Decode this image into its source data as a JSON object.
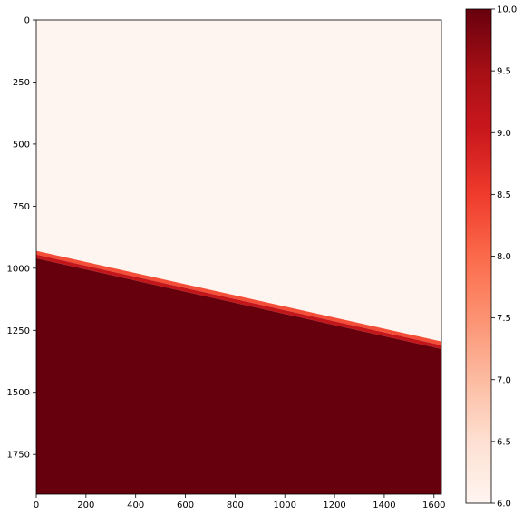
{
  "chart_data": {
    "type": "heatmap",
    "title": "",
    "xlabel": "",
    "ylabel": "",
    "xlim": [
      0,
      1630
    ],
    "ylim": [
      1910,
      0
    ],
    "x_ticks": [
      0,
      200,
      400,
      600,
      800,
      1000,
      1200,
      1400,
      1600
    ],
    "y_ticks": [
      0,
      250,
      500,
      750,
      1000,
      1250,
      1500,
      1750
    ],
    "colormap": "Reds",
    "vmin": 6.0,
    "vmax": 10.0,
    "colorbar_ticks": [
      "6.0",
      "6.5",
      "7.0",
      "7.5",
      "8.0",
      "8.5",
      "9.0",
      "9.5",
      "10.0"
    ],
    "regions": [
      {
        "name": "upper",
        "value": 6.0
      },
      {
        "name": "lower",
        "value": 10.0
      }
    ],
    "interface": {
      "x_start": 0,
      "y_start": 930,
      "x_end": 1630,
      "y_end": 1295
    },
    "transition_bands": [
      {
        "value": 8.3,
        "thickness": 15
      },
      {
        "value": 9.1,
        "thickness": 15
      }
    ],
    "grid": false,
    "colors": {
      "low": "#fff5f0",
      "high": "#67000d"
    }
  }
}
